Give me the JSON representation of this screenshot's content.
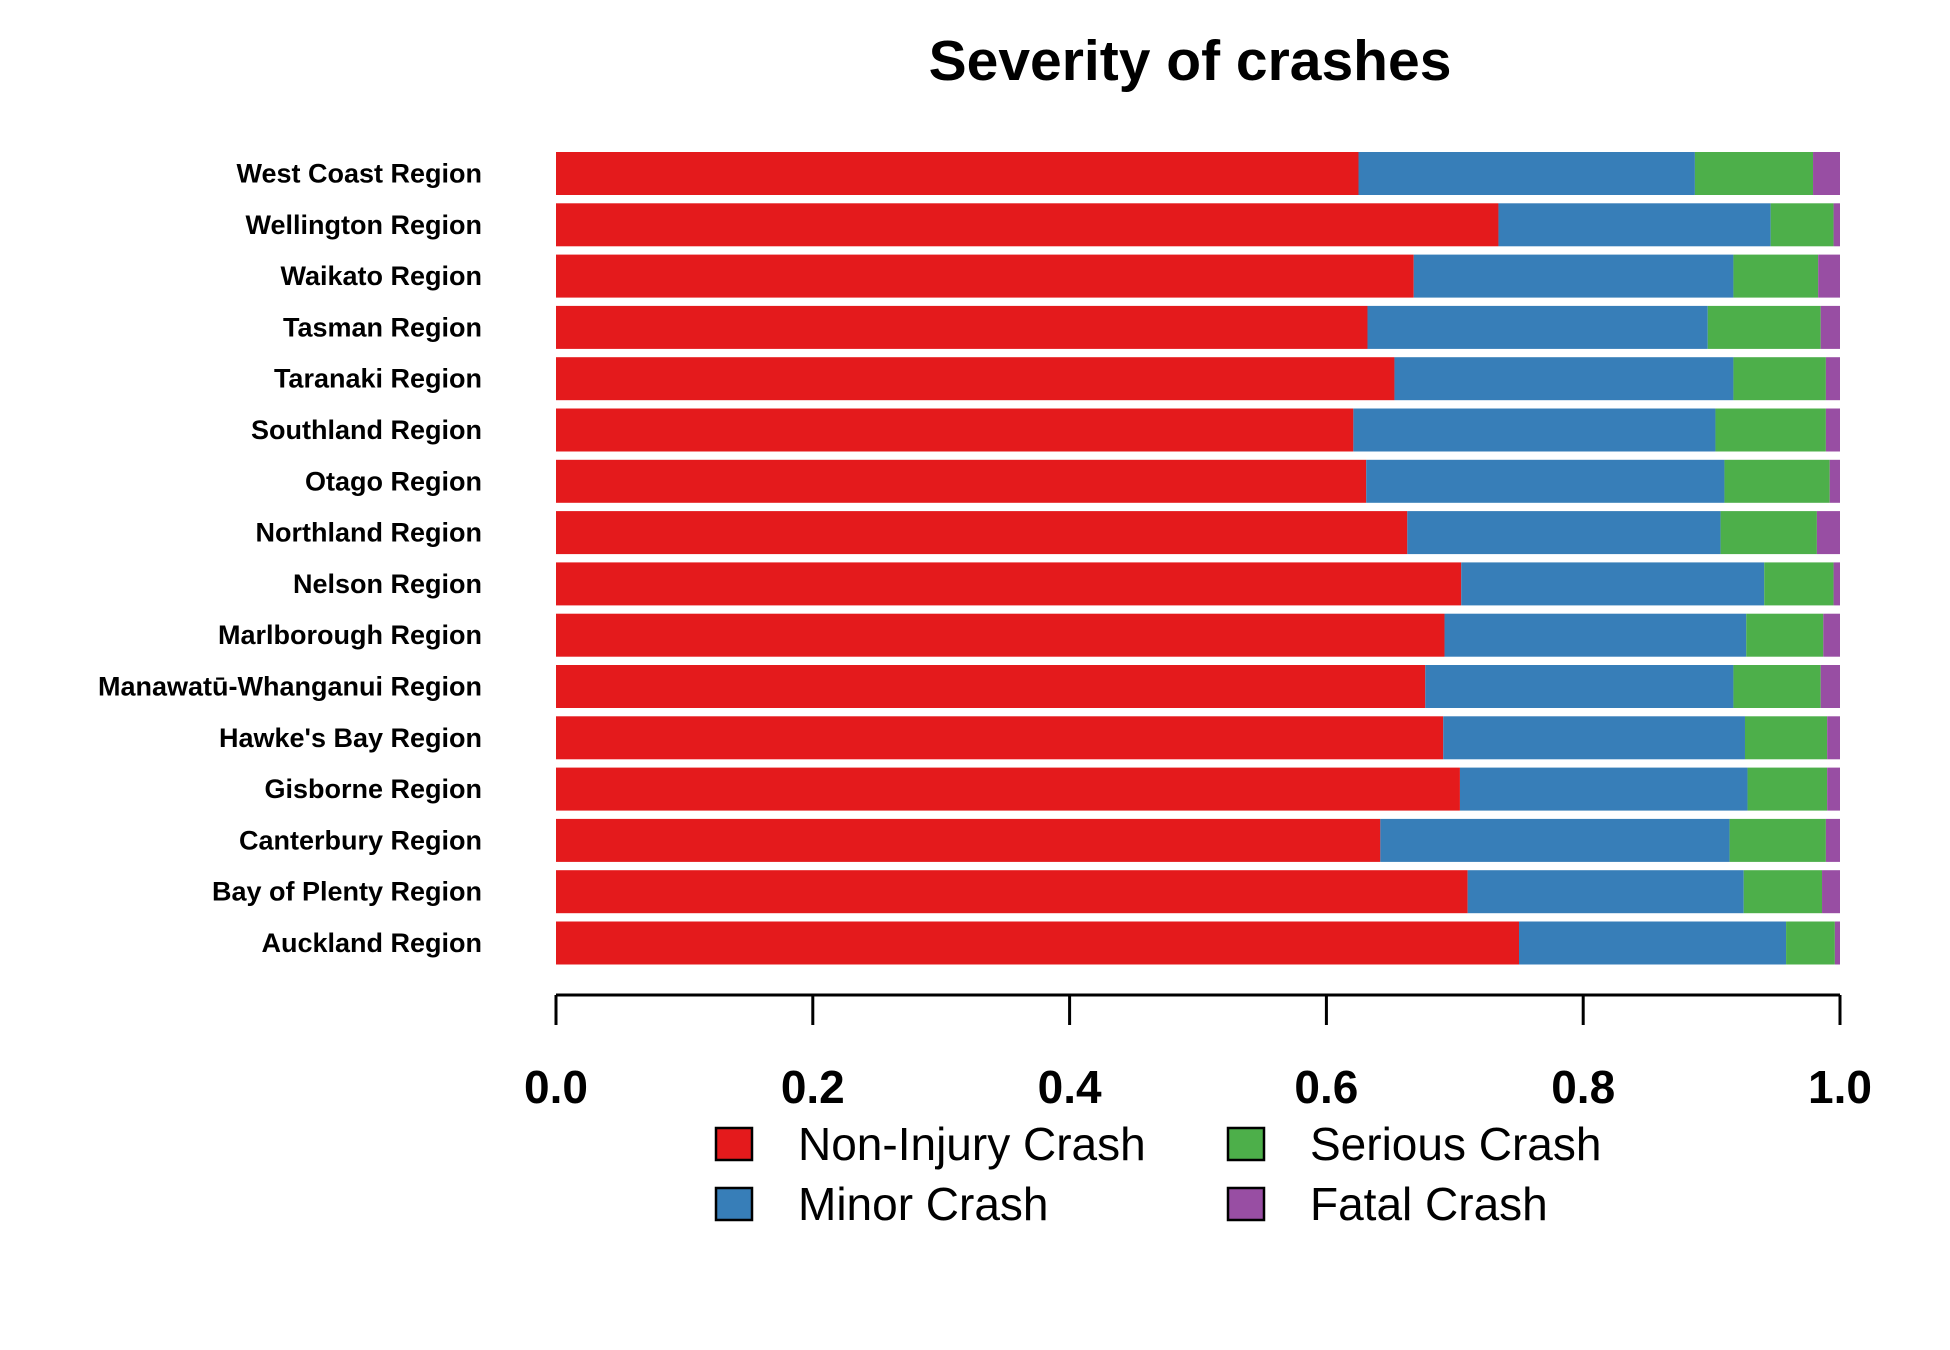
{
  "chart_data": {
    "type": "bar",
    "orientation": "horizontal",
    "stacked": true,
    "title": "Severity of crashes",
    "xlabel": "",
    "ylabel": "",
    "xlim": [
      0,
      1
    ],
    "xticks": [
      0.0,
      0.2,
      0.4,
      0.6,
      0.8,
      1.0
    ],
    "xtick_labels": [
      "0.0",
      "0.2",
      "0.4",
      "0.6",
      "0.8",
      "1.0"
    ],
    "grid": false,
    "legend_position": "bottom",
    "categories": [
      "West Coast Region",
      "Wellington Region",
      "Waikato Region",
      "Tasman Region",
      "Taranaki Region",
      "Southland Region",
      "Otago Region",
      "Northland Region",
      "Nelson Region",
      "Marlborough Region",
      "Manawatū-Whanganui Region",
      "Hawke's Bay Region",
      "Gisborne Region",
      "Canterbury Region",
      "Bay of Plenty Region",
      "Auckland Region"
    ],
    "series": [
      {
        "name": "Non-Injury Crash",
        "color": "#e41a1c",
        "values": [
          0.625,
          0.734,
          0.668,
          0.632,
          0.653,
          0.621,
          0.631,
          0.663,
          0.705,
          0.692,
          0.677,
          0.691,
          0.704,
          0.642,
          0.71,
          0.75
        ]
      },
      {
        "name": "Minor Crash",
        "color": "#377eb8",
        "values": [
          0.262,
          0.212,
          0.249,
          0.265,
          0.264,
          0.282,
          0.279,
          0.244,
          0.236,
          0.235,
          0.24,
          0.235,
          0.224,
          0.272,
          0.215,
          0.208
        ]
      },
      {
        "name": "Serious Crash",
        "color": "#4daf4a",
        "values": [
          0.092,
          0.049,
          0.066,
          0.088,
          0.072,
          0.086,
          0.082,
          0.075,
          0.054,
          0.06,
          0.068,
          0.064,
          0.062,
          0.075,
          0.061,
          0.038
        ]
      },
      {
        "name": "Fatal Crash",
        "color": "#984ea3",
        "values": [
          0.021,
          0.005,
          0.017,
          0.015,
          0.011,
          0.011,
          0.008,
          0.018,
          0.005,
          0.013,
          0.015,
          0.01,
          0.01,
          0.011,
          0.014,
          0.004
        ]
      }
    ]
  }
}
